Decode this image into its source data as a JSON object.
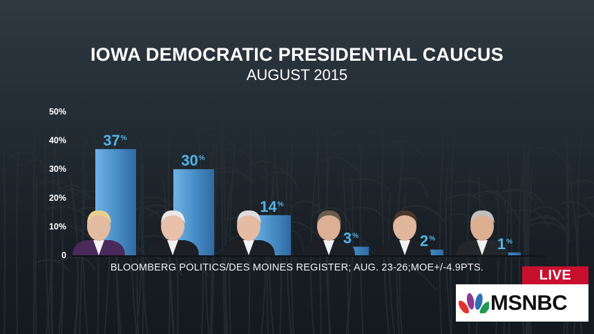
{
  "chart_data": {
    "type": "bar",
    "title": "IOWA DEMOCRATIC PRESIDENTIAL CAUCUS",
    "subtitle": "AUGUST 2015",
    "categories": [
      "",
      "",
      "",
      "",
      "",
      ""
    ],
    "values": [
      37,
      30,
      14,
      3,
      2,
      1
    ],
    "value_labels": [
      "37",
      "30",
      "14",
      "3",
      "2",
      "1"
    ],
    "value_suffix": "%",
    "ylim": [
      0,
      50
    ],
    "yticks": [
      "0",
      "10%",
      "20%",
      "30%",
      "40%",
      "50%"
    ],
    "ytick_values": [
      0,
      10,
      20,
      30,
      40,
      50
    ],
    "grid": false,
    "source": "BLOOMBERG POLITICS/DES MOINES REGISTER; AUG. 23-26;MOE+/-4.9PTS.",
    "bar_color": "#4a90c8",
    "label_color": "#52b4e8"
  },
  "badge": {
    "live": "LIVE",
    "network": "MSNBC",
    "live_color": "#c8102e"
  }
}
